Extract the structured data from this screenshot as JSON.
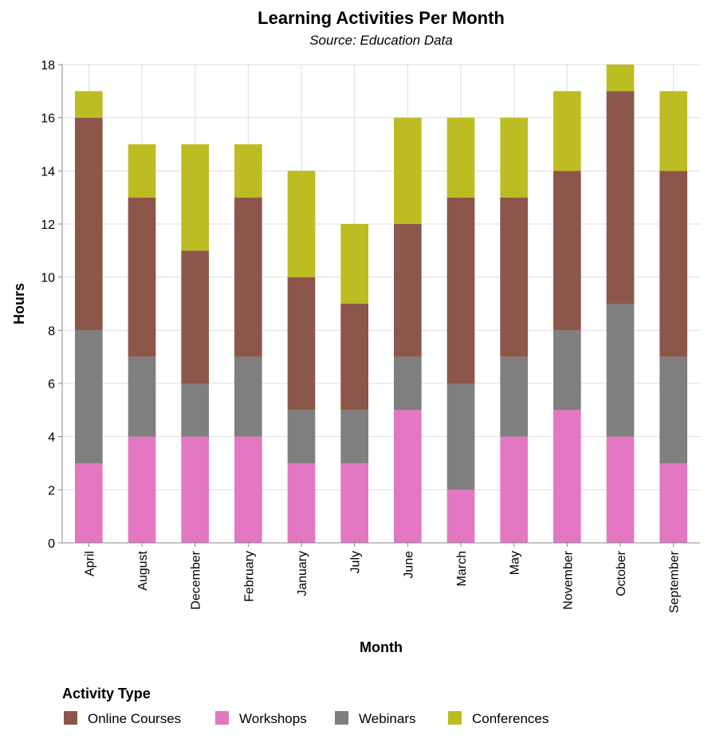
{
  "chart_data": {
    "type": "bar",
    "stacked": true,
    "title": "Learning Activities Per Month",
    "subtitle": "Source: Education Data",
    "xlabel": "Month",
    "ylabel": "Hours",
    "ylim": [
      0,
      18
    ],
    "yticks": [
      "0",
      "2",
      "4",
      "6",
      "8",
      "10",
      "12",
      "14",
      "16",
      "18"
    ],
    "grid": true,
    "legend_title": "Activity Type",
    "legend_position": "bottom-left",
    "categories": [
      "April",
      "August",
      "December",
      "February",
      "January",
      "July",
      "June",
      "March",
      "May",
      "November",
      "October",
      "September"
    ],
    "series": [
      {
        "name": "Workshops",
        "color": "#e377c2",
        "values": [
          3,
          4,
          4,
          4,
          3,
          3,
          5,
          2,
          4,
          5,
          4,
          3
        ]
      },
      {
        "name": "Webinars",
        "color": "#7f7f7f",
        "values": [
          5,
          3,
          2,
          3,
          2,
          2,
          2,
          4,
          3,
          3,
          5,
          4
        ]
      },
      {
        "name": "Online Courses",
        "color": "#8c564b",
        "values": [
          8,
          6,
          5,
          6,
          5,
          4,
          5,
          7,
          6,
          6,
          8,
          7
        ]
      },
      {
        "name": "Conferences",
        "color": "#bcbd22",
        "values": [
          1,
          2,
          4,
          2,
          4,
          3,
          4,
          3,
          3,
          3,
          1,
          3
        ]
      }
    ],
    "legend_order": [
      "Online Courses",
      "Workshops",
      "Webinars",
      "Conferences"
    ]
  }
}
